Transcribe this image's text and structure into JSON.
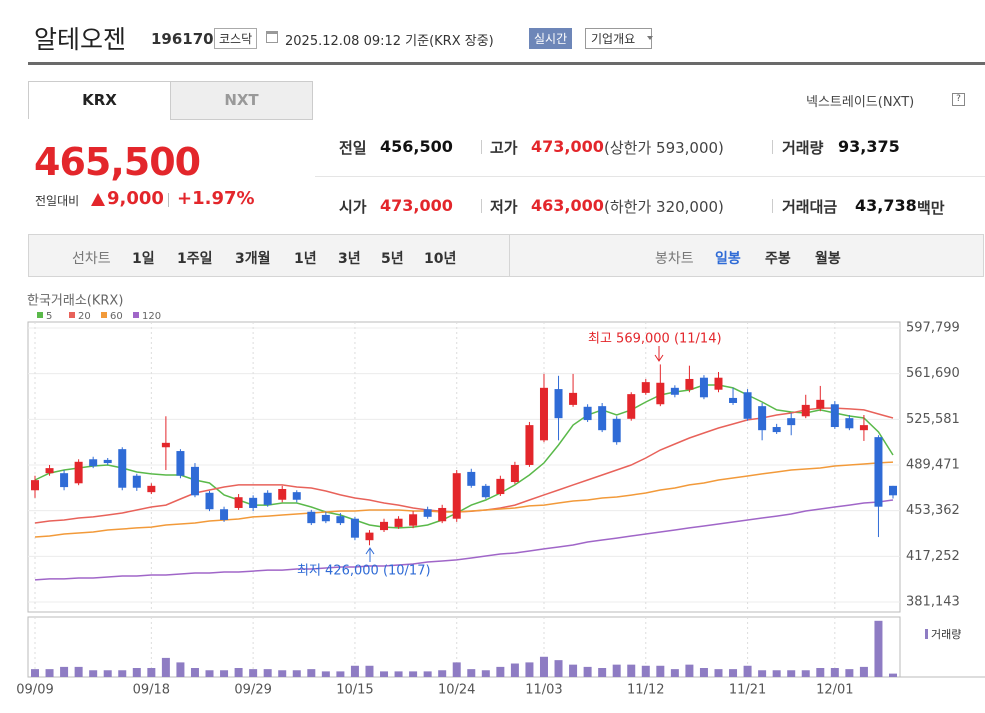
{
  "header": {
    "title": "알테오젠",
    "code": "196170",
    "market": "코스닥",
    "timestamp": "2025.12.08 09:12 기준(KRX 장중)",
    "buttons": [
      "실시간",
      "기업개요"
    ]
  },
  "tabs": [
    "KRX",
    "NXT"
  ],
  "nxt_link": "넥스트레이드(NXT)",
  "nxt_help": "?",
  "quote": {
    "price": "465,500",
    "change_label": "전일대비",
    "change": "9,000",
    "change_rate": "+1.97%",
    "rows": [
      [
        {
          "label": "전일",
          "value": "456,500"
        },
        {
          "label": "고가",
          "value": "473,000",
          "note": "(상한가 593,000)"
        },
        {
          "label": "거래량",
          "value": "93,375"
        }
      ],
      [
        {
          "label": "시가",
          "value": "473,000"
        },
        {
          "label": "저가",
          "value": "463,000",
          "note": "(하한가 320,000)"
        },
        {
          "label": "거래대금",
          "value": "43,738",
          "unit": "백만"
        }
      ]
    ]
  },
  "periods": {
    "line_label": "선차트",
    "line": [
      "1일",
      "1주일",
      "3개월",
      "1년",
      "3년",
      "5년",
      "10년"
    ],
    "candle_label": "봉차트",
    "candle": [
      "일봉",
      "주봉",
      "월봉"
    ]
  },
  "chart_data": {
    "type": "candlestick",
    "source": "한국거래소(KRX)",
    "categories": [
      "09/09",
      null,
      null,
      null,
      null,
      null,
      null,
      null,
      "09/18",
      null,
      null,
      null,
      null,
      null,
      null,
      "09/29",
      null,
      null,
      null,
      null,
      null,
      null,
      "10/15",
      null,
      null,
      null,
      null,
      null,
      null,
      "10/24",
      null,
      null,
      null,
      null,
      null,
      "11/03",
      null,
      null,
      null,
      null,
      null,
      null,
      "11/12",
      null,
      null,
      null,
      null,
      null,
      null,
      "11/21",
      null,
      null,
      null,
      null,
      null,
      "12/01",
      null,
      null,
      null,
      null
    ],
    "open": [
      469500,
      483000,
      483000,
      475000,
      494000,
      493500,
      502000,
      481000,
      468000,
      503500,
      500500,
      488000,
      467500,
      454500,
      455500,
      463500,
      467500,
      462000,
      468000,
      452500,
      450000,
      449000,
      447000,
      430000,
      438000,
      440500,
      441500,
      454500,
      445000,
      447000,
      484000,
      473000,
      466500,
      476000,
      489500,
      509000,
      549500,
      537000,
      535500,
      536000,
      526000,
      526000,
      546500,
      537500,
      550500,
      549000,
      558500,
      549000,
      542500,
      547000,
      536000,
      519500,
      526500,
      528000,
      534000,
      537500,
      526500,
      517000,
      511500,
      473000
    ],
    "high": [
      481000,
      489500,
      485500,
      494000,
      496000,
      495000,
      503500,
      482500,
      475000,
      528000,
      502000,
      491000,
      469000,
      456500,
      466500,
      465500,
      469500,
      473000,
      469500,
      454000,
      452500,
      451500,
      448500,
      438000,
      447000,
      449000,
      453000,
      456500,
      458000,
      485500,
      486500,
      474500,
      481000,
      492000,
      523500,
      561500,
      560000,
      561500,
      537500,
      538500,
      528000,
      547000,
      557500,
      569000,
      552500,
      568000,
      560500,
      563000,
      550500,
      549500,
      538500,
      522000,
      530500,
      545000,
      552000,
      540000,
      529000,
      529000,
      513000,
      473000
    ],
    "low": [
      463500,
      481000,
      469500,
      473500,
      487000,
      489500,
      469500,
      469000,
      466500,
      485500,
      479000,
      464000,
      453000,
      444500,
      454000,
      453000,
      456500,
      460000,
      460000,
      442000,
      443500,
      442000,
      430000,
      426000,
      436500,
      439000,
      439500,
      447000,
      443500,
      444500,
      471500,
      462500,
      465000,
      474500,
      488000,
      507500,
      509000,
      535500,
      523500,
      515500,
      505500,
      524500,
      545000,
      536000,
      543000,
      547000,
      541500,
      547000,
      537000,
      524500,
      509000,
      514000,
      513000,
      526500,
      532000,
      518000,
      517000,
      508500,
      432500,
      463000
    ],
    "close": [
      477500,
      487000,
      472000,
      492000,
      488500,
      491000,
      471500,
      471500,
      473000,
      507000,
      481000,
      465500,
      454500,
      446000,
      464000,
      455500,
      458000,
      470500,
      462000,
      443500,
      445000,
      443500,
      432000,
      436000,
      444500,
      447000,
      450500,
      448500,
      455500,
      483000,
      473000,
      464000,
      478500,
      489500,
      521000,
      550500,
      526500,
      546500,
      525000,
      517000,
      507500,
      545500,
      555000,
      554500,
      545000,
      557500,
      543000,
      558500,
      538500,
      526000,
      517000,
      515500,
      521000,
      537000,
      541000,
      519500,
      518500,
      521000,
      456500,
      465500
    ],
    "up_color": "#e3262b",
    "down_color": "#2f6bd6",
    "series": [
      {
        "name": "5",
        "color": "#5ab94a",
        "values": [
          477600,
          483100,
          485500,
          487100,
          488700,
          489500,
          487100,
          483900,
          482400,
          481600,
          481600,
          477600,
          475200,
          465800,
          461800,
          457800,
          457800,
          459400,
          459400,
          456300,
          452300,
          449900,
          446000,
          442000,
          440400,
          439700,
          440400,
          442000,
          446000,
          451500,
          457800,
          461800,
          467300,
          473700,
          481600,
          491100,
          505300,
          521100,
          529000,
          533000,
          529000,
          533000,
          539300,
          544800,
          547200,
          548800,
          552700,
          552700,
          550400,
          544800,
          539300,
          533000,
          531400,
          530600,
          533000,
          530600,
          528200,
          526600,
          515600,
          497400
        ]
      },
      {
        "name": "20",
        "color": "#e8625a",
        "values": [
          443600,
          445200,
          446000,
          447600,
          448400,
          449900,
          451500,
          453900,
          456300,
          457800,
          462600,
          467300,
          469700,
          472100,
          473700,
          473700,
          473700,
          473700,
          472100,
          471300,
          468900,
          465800,
          463400,
          461800,
          459400,
          457800,
          455500,
          453900,
          452900,
          452300,
          452900,
          453900,
          455500,
          457800,
          461800,
          465800,
          469700,
          473700,
          477600,
          481600,
          485500,
          489500,
          495000,
          501300,
          506100,
          510800,
          514800,
          518700,
          521900,
          525100,
          526600,
          529000,
          530600,
          533000,
          534500,
          534500,
          533800,
          533000,
          529800,
          526600
        ]
      },
      {
        "name": "60",
        "color": "#f29a3a",
        "values": [
          432500,
          433300,
          434900,
          435700,
          436500,
          438100,
          438900,
          439700,
          440400,
          442000,
          442800,
          443600,
          445200,
          446000,
          446800,
          448400,
          449100,
          449900,
          450700,
          451500,
          452300,
          453100,
          453100,
          453900,
          453900,
          453900,
          453100,
          453100,
          452300,
          452300,
          453100,
          453900,
          454700,
          455500,
          457100,
          457800,
          459400,
          461000,
          461800,
          463400,
          464200,
          465700,
          467300,
          469700,
          471300,
          473700,
          475200,
          477600,
          479200,
          480800,
          482400,
          483900,
          485500,
          486300,
          487100,
          488700,
          489500,
          490300,
          491100,
          491800
        ]
      },
      {
        "name": "120",
        "color": "#a066c8",
        "values": [
          398600,
          399400,
          399400,
          400100,
          400100,
          400900,
          401700,
          401700,
          402500,
          402500,
          403300,
          404100,
          404100,
          404900,
          404900,
          405600,
          406400,
          406400,
          407200,
          407200,
          408000,
          408800,
          408800,
          409600,
          409600,
          410400,
          411200,
          412800,
          413600,
          414400,
          415900,
          417500,
          419100,
          419900,
          421500,
          423100,
          424600,
          426200,
          428600,
          430200,
          431700,
          433300,
          434900,
          436500,
          438100,
          439700,
          441200,
          442800,
          444400,
          446000,
          447600,
          449100,
          450700,
          453100,
          454700,
          456300,
          457800,
          459400,
          460200,
          461800
        ]
      }
    ],
    "volume": {
      "name": "거래량",
      "color": "#8e7cc3",
      "lim": [
        0,
        1600000
      ],
      "values": [
        217000,
        217000,
        279000,
        279000,
        186000,
        186000,
        186000,
        248000,
        248000,
        527000,
        403000,
        248000,
        186000,
        186000,
        248000,
        217000,
        217000,
        186000,
        186000,
        217000,
        155000,
        155000,
        310000,
        310000,
        155000,
        155000,
        155000,
        155000,
        186000,
        403000,
        217000,
        186000,
        279000,
        372000,
        403000,
        558000,
        465000,
        341000,
        279000,
        248000,
        341000,
        341000,
        310000,
        310000,
        217000,
        341000,
        248000,
        217000,
        217000,
        310000,
        186000,
        186000,
        186000,
        186000,
        248000,
        248000,
        217000,
        279000,
        1550000,
        93375
      ]
    },
    "ylim": [
      381143,
      597799
    ],
    "yticks": [
      {
        "value": 597799,
        "label": "597,799"
      },
      {
        "value": 561690,
        "label": "561,690"
      },
      {
        "value": 525581,
        "label": "525,581"
      },
      {
        "value": 489471,
        "label": "489,471"
      },
      {
        "value": 453362,
        "label": "453,362"
      },
      {
        "value": 417252,
        "label": "417,252"
      },
      {
        "value": 381143,
        "label": "381,143"
      }
    ],
    "grid": true,
    "annotations": [
      {
        "text": "최고 569,000 (11/14)",
        "color": "#e3262b"
      },
      {
        "text": "최저 426,000 (10/17)",
        "color": "#2f6bd6"
      }
    ]
  }
}
